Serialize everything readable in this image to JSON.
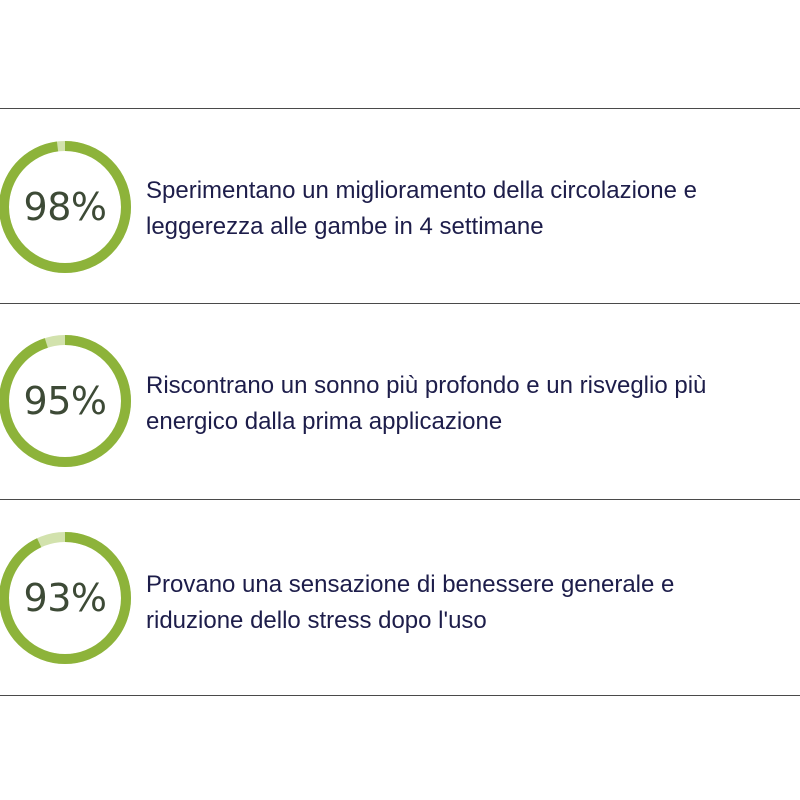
{
  "colors": {
    "ring_fill": "#8db33a",
    "ring_track": "#d2e2ad",
    "percent_text": "#3d4a36",
    "body_text": "#1d1d4a",
    "divider": "#4a4a4a"
  },
  "stats": [
    {
      "percent_label": "98%",
      "fraction": 0.98,
      "text_line1": "Sperimentano un miglioramento della circolazione e",
      "text_line2": "leggerezza alle gambe in 4 settimane"
    },
    {
      "percent_label": "95%",
      "fraction": 0.95,
      "text_line1": "Riscontrano un sonno più profondo e un risveglio più",
      "text_line2": "energico dalla prima applicazione"
    },
    {
      "percent_label": "93%",
      "fraction": 0.93,
      "text_line1": "Provano una sensazione di benessere generale e",
      "text_line2": "riduzione dello stress dopo l'uso"
    }
  ]
}
